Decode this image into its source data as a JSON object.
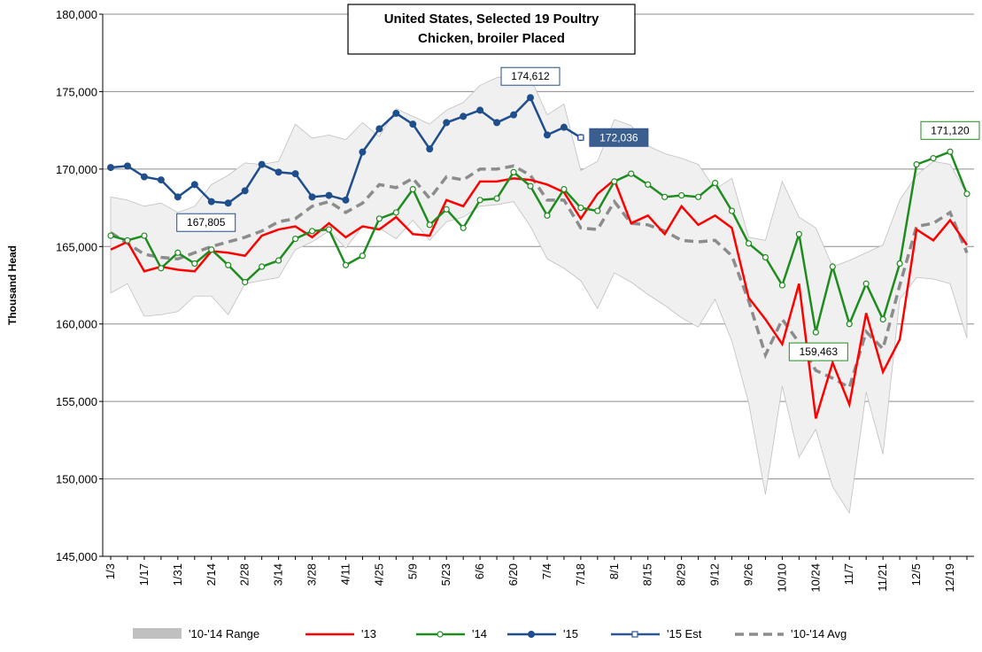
{
  "chart_data": {
    "type": "line",
    "title": [
      "United States, Selected 19 Poultry",
      "Chicken, broiler Placed"
    ],
    "ylabel": "Thousand Head",
    "categories": [
      "1/3",
      null,
      "1/17",
      null,
      "1/31",
      null,
      "2/14",
      null,
      "2/28",
      null,
      "3/14",
      null,
      "3/28",
      null,
      "4/11",
      null,
      "4/25",
      null,
      "5/9",
      null,
      "5/23",
      null,
      "6/6",
      null,
      "6/20",
      null,
      "7/4",
      null,
      "7/18",
      null,
      "8/1",
      null,
      "8/15",
      null,
      "8/29",
      null,
      "9/12",
      null,
      "9/26",
      null,
      "10/10",
      null,
      "10/24",
      null,
      "11/7",
      null,
      "11/21",
      null,
      "12/5",
      null,
      "12/19",
      null
    ],
    "ylim": [
      145000,
      180000
    ],
    "yticks": [
      {
        "value": 145000,
        "label": "145,000"
      },
      {
        "value": 150000,
        "label": "150,000"
      },
      {
        "value": 155000,
        "label": "155,000"
      },
      {
        "value": 160000,
        "label": "160,000"
      },
      {
        "value": 165000,
        "label": "165,000"
      },
      {
        "value": 170000,
        "label": "170,000"
      },
      {
        "value": 175000,
        "label": "175,000"
      },
      {
        "value": 180000,
        "label": "180,000"
      }
    ],
    "grid": true,
    "legend": "bottom",
    "range": {
      "name": "'10-'14 Range",
      "color": "#c0c0c0",
      "fill": "#f0f0f0",
      "high": [
        168200,
        168000,
        167600,
        167800,
        167200,
        167600,
        169000,
        169600,
        170400,
        170300,
        170500,
        172900,
        172000,
        172200,
        171900,
        173000,
        172100,
        173900,
        173400,
        172900,
        173800,
        174300,
        175400,
        175900,
        176100,
        175900,
        173500,
        174200,
        169900,
        170500,
        173200,
        172800,
        171500,
        171000,
        170700,
        170300,
        168700,
        169400,
        165600,
        165400,
        169200,
        166900,
        166200,
        163700,
        164100,
        164600,
        165100,
        168000,
        169600,
        170500,
        170300,
        168400
      ],
      "low": [
        162000,
        162600,
        160500,
        160600,
        160800,
        161800,
        161800,
        160600,
        162600,
        162800,
        163000,
        164800,
        165300,
        166000,
        164900,
        166300,
        166200,
        165500,
        166700,
        165400,
        166600,
        166900,
        167600,
        167700,
        167900,
        166300,
        164200,
        163600,
        162800,
        161000,
        163300,
        162700,
        161900,
        161200,
        160400,
        159800,
        161600,
        158900,
        154900,
        149000,
        156000,
        151400,
        153200,
        149500,
        147800,
        155600,
        151600,
        161600,
        163000,
        162900,
        162600,
        159100
      ]
    },
    "series": [
      {
        "name": "'13",
        "color": "#ff0000",
        "marker": "none",
        "values": [
          164800,
          165300,
          163400,
          163700,
          163500,
          163400,
          164700,
          164600,
          164400,
          165700,
          166100,
          166300,
          165600,
          166500,
          165600,
          166300,
          166100,
          166900,
          165800,
          165700,
          168000,
          167600,
          169200,
          169200,
          169400,
          169300,
          169000,
          168500,
          166800,
          168400,
          169300,
          166500,
          167000,
          165800,
          167600,
          166400,
          167000,
          166200,
          161700,
          160300,
          158700,
          162600,
          153900,
          157500,
          154800,
          160700,
          156900,
          159000,
          166100,
          165400,
          166700,
          165100
        ]
      },
      {
        "name": "'14",
        "color": "#1f8c1f",
        "marker": "circle-open",
        "values": [
          165700,
          165400,
          165700,
          163600,
          164600,
          163900,
          164800,
          163800,
          162700,
          163700,
          164100,
          165500,
          166000,
          166100,
          163800,
          164400,
          166800,
          167200,
          168700,
          166400,
          167400,
          166200,
          168000,
          168100,
          169800,
          168900,
          167000,
          168700,
          167500,
          167300,
          169200,
          169700,
          169000,
          168200,
          168300,
          168200,
          169100,
          167300,
          165200,
          164300,
          162500,
          165800,
          159463,
          163700,
          160000,
          162600,
          160300,
          163900,
          170300,
          170700,
          171120,
          168400
        ],
        "value_labels": [
          null,
          null,
          null,
          null,
          null,
          null,
          null,
          null,
          null,
          null,
          null,
          null,
          null,
          null,
          null,
          null,
          null,
          null,
          null,
          null,
          null,
          null,
          null,
          null,
          null,
          null,
          null,
          null,
          null,
          null,
          null,
          null,
          null,
          null,
          null,
          null,
          null,
          null,
          null,
          null,
          null,
          null,
          "159,463",
          null,
          null,
          null,
          null,
          null,
          null,
          null,
          "171,120",
          null
        ]
      },
      {
        "name": "'15",
        "color": "#1f4e8c",
        "marker": "circle",
        "values": [
          170100,
          170200,
          169500,
          169300,
          168200,
          169000,
          167900,
          167805,
          168600,
          170300,
          169800,
          169700,
          168200,
          168300,
          168000,
          171100,
          172600,
          173600,
          172900,
          171300,
          173000,
          173400,
          173800,
          173000,
          173500,
          174612,
          172200,
          172700,
          172036,
          null,
          null,
          null,
          null,
          null,
          null,
          null,
          null,
          null,
          null,
          null,
          null,
          null,
          null,
          null,
          null,
          null,
          null,
          null,
          null,
          null,
          null,
          null
        ],
        "value_labels": [
          null,
          null,
          null,
          null,
          null,
          null,
          null,
          "167,805",
          null,
          null,
          null,
          null,
          null,
          null,
          null,
          null,
          null,
          null,
          null,
          null,
          null,
          null,
          null,
          null,
          null,
          "174,612",
          null,
          null,
          null,
          null,
          null,
          null,
          null,
          null,
          null,
          null,
          null,
          null,
          null,
          null,
          null,
          null,
          null,
          null,
          null,
          null,
          null,
          null,
          null,
          null,
          null,
          null
        ]
      },
      {
        "name": "'15 Est",
        "color": "#2f5597",
        "marker": "square-open",
        "values": [
          null,
          null,
          null,
          null,
          null,
          null,
          null,
          null,
          null,
          null,
          null,
          null,
          null,
          null,
          null,
          null,
          null,
          null,
          null,
          null,
          null,
          null,
          null,
          null,
          null,
          null,
          null,
          null,
          172036,
          null,
          null,
          null,
          null,
          null,
          null,
          null,
          null,
          null,
          null,
          null,
          null,
          null,
          null,
          null,
          null,
          null,
          null,
          null,
          null,
          null,
          null,
          null
        ],
        "value_labels": [
          null,
          null,
          null,
          null,
          null,
          null,
          null,
          null,
          null,
          null,
          null,
          null,
          null,
          null,
          null,
          null,
          null,
          null,
          null,
          null,
          null,
          null,
          null,
          null,
          null,
          null,
          null,
          null,
          "172,036",
          null,
          null,
          null,
          null,
          null,
          null,
          null,
          null,
          null,
          null,
          null,
          null,
          null,
          null,
          null,
          null,
          null,
          null,
          null,
          null,
          null,
          null,
          null
        ]
      },
      {
        "name": "'10-'14 Avg",
        "color": "#8c8c8c",
        "marker": "none",
        "dash": true,
        "values": [
          165900,
          165200,
          164500,
          164300,
          164200,
          164600,
          165000,
          165300,
          165600,
          166000,
          166600,
          166800,
          167600,
          167900,
          167200,
          167800,
          169000,
          168800,
          169400,
          168100,
          169500,
          169300,
          170000,
          170000,
          170200,
          169600,
          168000,
          168000,
          166200,
          166100,
          167900,
          166500,
          166400,
          166000,
          165400,
          165300,
          165400,
          164400,
          161500,
          158000,
          160300,
          158800,
          157000,
          156500,
          155900,
          159500,
          158400,
          162500,
          166300,
          166500,
          167200,
          164600
        ]
      }
    ]
  }
}
